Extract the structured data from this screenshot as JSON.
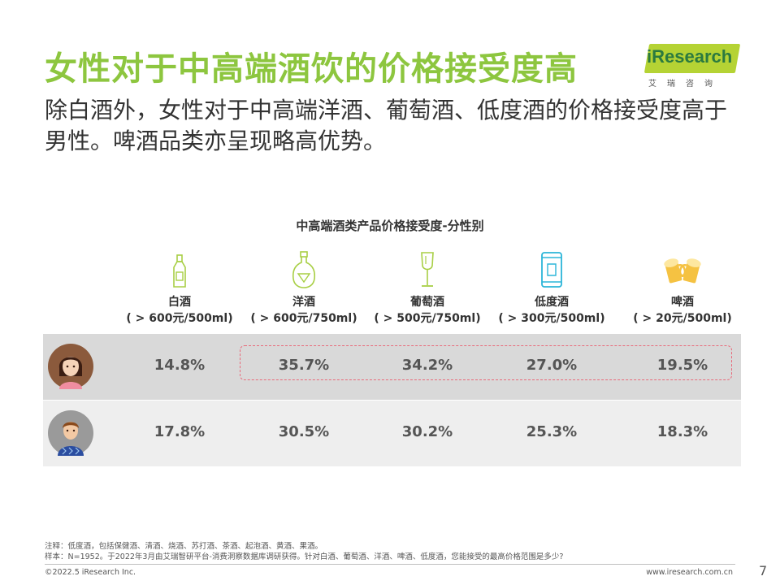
{
  "header": {
    "title": "女性对于中高端酒饮的价格接受度高",
    "subtitle": "除白酒外，女性对于中高端洋酒、葡萄酒、低度酒的价格接受度高于男性。啤酒品类亦呈现略高优势。"
  },
  "logo": {
    "brand": "iResearch",
    "chinese": "艾瑞咨询"
  },
  "chart": {
    "title": "中高端酒类产品价格接受度-分性别",
    "categories": [
      {
        "name": "白酒",
        "price": "( > 600元/500ml)",
        "icon": "baijiu-bottle-icon"
      },
      {
        "name": "洋酒",
        "price": "( > 600元/750ml)",
        "icon": "liquor-bottle-icon"
      },
      {
        "name": "葡萄酒",
        "price": "( > 500元/750ml)",
        "icon": "wine-glass-icon"
      },
      {
        "name": "低度酒",
        "price": "( > 300元/500ml)",
        "icon": "can-icon"
      },
      {
        "name": "啤酒",
        "price": "( > 20元/500ml)",
        "icon": "beer-mugs-icon"
      }
    ],
    "rows": [
      {
        "group": "female",
        "avatar": "female-avatar-icon",
        "values": [
          "14.8%",
          "35.7%",
          "34.2%",
          "27.0%",
          "19.5%"
        ]
      },
      {
        "group": "male",
        "avatar": "male-avatar-icon",
        "values": [
          "17.8%",
          "30.5%",
          "30.2%",
          "25.3%",
          "18.3%"
        ]
      }
    ]
  },
  "chart_data": {
    "type": "table",
    "title": "中高端酒类产品价格接受度-分性别",
    "categories": [
      "白酒",
      "洋酒",
      "葡萄酒",
      "低度酒",
      "啤酒"
    ],
    "series": [
      {
        "values": [
          14.8,
          35.7,
          34.2,
          27.0,
          19.5
        ]
      },
      {
        "values": [
          17.8,
          30.5,
          30.2,
          25.3,
          18.3
        ]
      }
    ]
  },
  "notes": {
    "line1": "注释：低度酒，包括保健酒、清酒、烧酒、苏打酒、茶酒、起泡酒、黄酒、果酒。",
    "line2": "样本：N=1952。于2022年3月由艾瑞智研平台-消费洞察数据库调研获得。针对白酒、葡萄酒、洋酒、啤酒、低度酒，您能接受的最高价格范围是多少?"
  },
  "footer": {
    "copyright": "©2022.5 iResearch Inc.",
    "website": "www.iresearch.com.cn",
    "page": "7"
  },
  "colors": {
    "title_green": "#8dc63f",
    "icon_green": "#a8cf45",
    "icon_cyan": "#2bb5d8",
    "icon_yellow": "#f5c242",
    "highlight_pink": "#e86a7a",
    "female_row_bg": "#d9d9d9",
    "male_row_bg": "#eeeeee"
  }
}
